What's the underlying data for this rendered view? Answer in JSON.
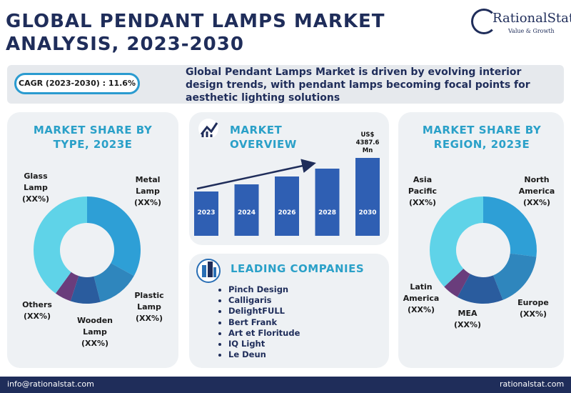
{
  "header": {
    "title": "GLOBAL PENDANT LAMPS MARKET ANALYSIS, 2023-2030",
    "logo": {
      "name": "RationalStat",
      "tagline": "Value & Growth"
    }
  },
  "summary": {
    "cagr": "CAGR (2023-2030) : 11.6%",
    "text": "Global Pendant Lamps Market is driven by evolving interior design trends, with pendant lamps becoming focal points for aesthetic lighting solutions"
  },
  "type_share": {
    "title": "MARKET SHARE BY TYPE, 2023E",
    "segments": [
      {
        "name": "Metal Lamp",
        "value_label": "(XX%)",
        "share": 33,
        "color": "#2e9fd6"
      },
      {
        "name": "Plastic Lamp",
        "value_label": "(XX%)",
        "share": 13,
        "color": "#2f86bd"
      },
      {
        "name": "Wooden Lamp",
        "value_label": "(XX%)",
        "share": 9,
        "color": "#2a5c9e"
      },
      {
        "name": "Others",
        "value_label": "(XX%)",
        "share": 5,
        "color": "#6a3d7c"
      },
      {
        "name": "Glass Lamp",
        "value_label": "(XX%)",
        "share": 40,
        "color": "#5fd3e8"
      }
    ]
  },
  "overview": {
    "title": "MARKET OVERVIEW",
    "color": "#2f5fb3",
    "bars": [
      {
        "year": "2023",
        "value": 2496
      },
      {
        "year": "2024",
        "value": 2898
      },
      {
        "year": "2026",
        "value": 3341
      },
      {
        "year": "2028",
        "value": 3784
      },
      {
        "year": "2030",
        "value": 4387.6,
        "value_label": "US$ 4387.6 Mn"
      }
    ]
  },
  "companies": {
    "title": "LEADING COMPANIES",
    "items": [
      "Pinch Design",
      "Calligaris",
      "DelightFULL",
      "Bert Frank",
      "Art et Floritude",
      "IQ Light",
      "Le Deun"
    ]
  },
  "region_share": {
    "title": "MARKET SHARE BY REGION, 2023E",
    "segments": [
      {
        "name": "North America",
        "value_label": "(XX%)",
        "share": 27,
        "color": "#2e9fd6"
      },
      {
        "name": "Europe",
        "value_label": "(XX%)",
        "share": 17,
        "color": "#2f86bd"
      },
      {
        "name": "MEA",
        "value_label": "(XX%)",
        "share": 14,
        "color": "#2a5c9e"
      },
      {
        "name": "Latin America",
        "value_label": "(XX%)",
        "share": 5,
        "color": "#6a3d7c"
      },
      {
        "name": "Asia Pacific",
        "value_label": "(XX%)",
        "share": 37,
        "color": "#5fd3e8"
      }
    ]
  },
  "footer": {
    "email": "info@rationalstat.com",
    "website": "rationalstat.com"
  }
}
